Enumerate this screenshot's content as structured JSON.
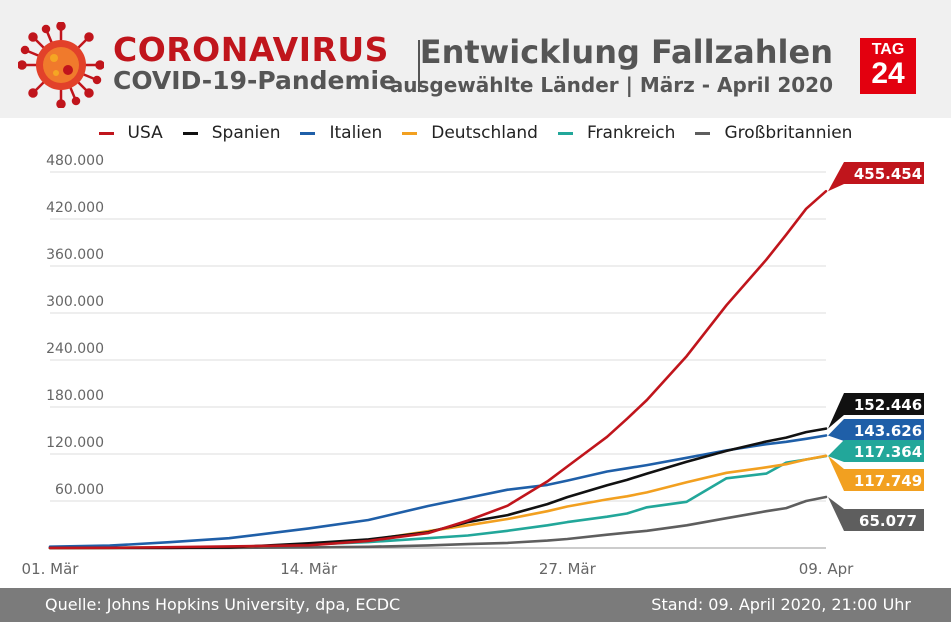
{
  "header": {
    "title": "CORONAVIRUS",
    "subtitle": "COVID-19-Pandemie",
    "heading": "Entwicklung Fallzahlen",
    "subheading": "ausgewählte Länder | März - April 2020",
    "logo_top": "TAG",
    "logo_bottom": "24"
  },
  "footer": {
    "source": "Quelle: Johns Hopkins University, dpa, ECDC",
    "date": "Stand: 09. April 2020, 21:00 Uhr"
  },
  "chart_data": {
    "type": "line",
    "title": "Entwicklung Fallzahlen",
    "xlabel": "",
    "ylabel": "",
    "x": [
      0,
      3,
      6,
      9,
      13,
      16,
      19,
      21,
      23,
      25,
      26,
      28,
      29,
      30,
      32,
      34,
      36,
      37,
      38,
      39
    ],
    "x_ticks": [
      {
        "day": 0,
        "label": "01. Mär"
      },
      {
        "day": 13,
        "label": "14. Mär"
      },
      {
        "day": 26,
        "label": "27. Mär"
      },
      {
        "day": 39,
        "label": "09. Apr"
      }
    ],
    "ylim": [
      0,
      480000
    ],
    "y_ticks": [
      {
        "value": 60000,
        "label": "60.000"
      },
      {
        "value": 120000,
        "label": "120.000"
      },
      {
        "value": 180000,
        "label": "180.000"
      },
      {
        "value": 240000,
        "label": "240.000"
      },
      {
        "value": 300000,
        "label": "300.000"
      },
      {
        "value": 360000,
        "label": "360.000"
      },
      {
        "value": 420000,
        "label": "420.000"
      },
      {
        "value": 480000,
        "label": "480.000"
      }
    ],
    "grid": true,
    "legend_position": "top",
    "series": [
      {
        "name": "USA",
        "color": "#c0151c",
        "end_label": "455.454",
        "values": [
          100,
          300,
          1000,
          2000,
          3500,
          9000,
          19000,
          35000,
          54000,
          85000,
          104000,
          142000,
          165000,
          189000,
          245000,
          310000,
          368000,
          400000,
          433000,
          455454
        ]
      },
      {
        "name": "Spanien",
        "color": "#111111",
        "end_label": "152.446",
        "values": [
          100,
          200,
          300,
          700,
          6000,
          11000,
          20000,
          33000,
          42000,
          56000,
          65000,
          80000,
          87000,
          95000,
          110000,
          124000,
          136000,
          141000,
          148000,
          152446
        ]
      },
      {
        "name": "Italien",
        "color": "#1f5fa8",
        "end_label": "143.626",
        "values": [
          1700,
          3100,
          7400,
          12500,
          25000,
          35700,
          53600,
          63900,
          74400,
          80600,
          86000,
          97700,
          101700,
          105800,
          115200,
          124600,
          132500,
          135600,
          139400,
          143626
        ]
      },
      {
        "name": "Deutschland",
        "color": "#f2a020",
        "end_label": "117.749",
        "values": [
          100,
          200,
          700,
          1200,
          4600,
          10000,
          21500,
          29000,
          37000,
          47000,
          53000,
          62000,
          66000,
          71000,
          84000,
          96000,
          103000,
          107000,
          113000,
          117749
        ]
      },
      {
        "name": "Frankreich",
        "color": "#22a79a",
        "end_label": "117.364",
        "values": [
          100,
          200,
          700,
          1400,
          4500,
          7500,
          12500,
          16000,
          22000,
          29000,
          33000,
          40000,
          44000,
          52000,
          59000,
          89000,
          95000,
          109000,
          113000,
          117364
        ]
      },
      {
        "name": "Großbritannien",
        "color": "#5e5e5e",
        "end_label": "65.077",
        "values": [
          20,
          50,
          150,
          300,
          800,
          1500,
          3300,
          5000,
          6500,
          9500,
          11500,
          17000,
          19500,
          22000,
          29000,
          38000,
          47000,
          51000,
          60000,
          65077
        ]
      }
    ]
  }
}
